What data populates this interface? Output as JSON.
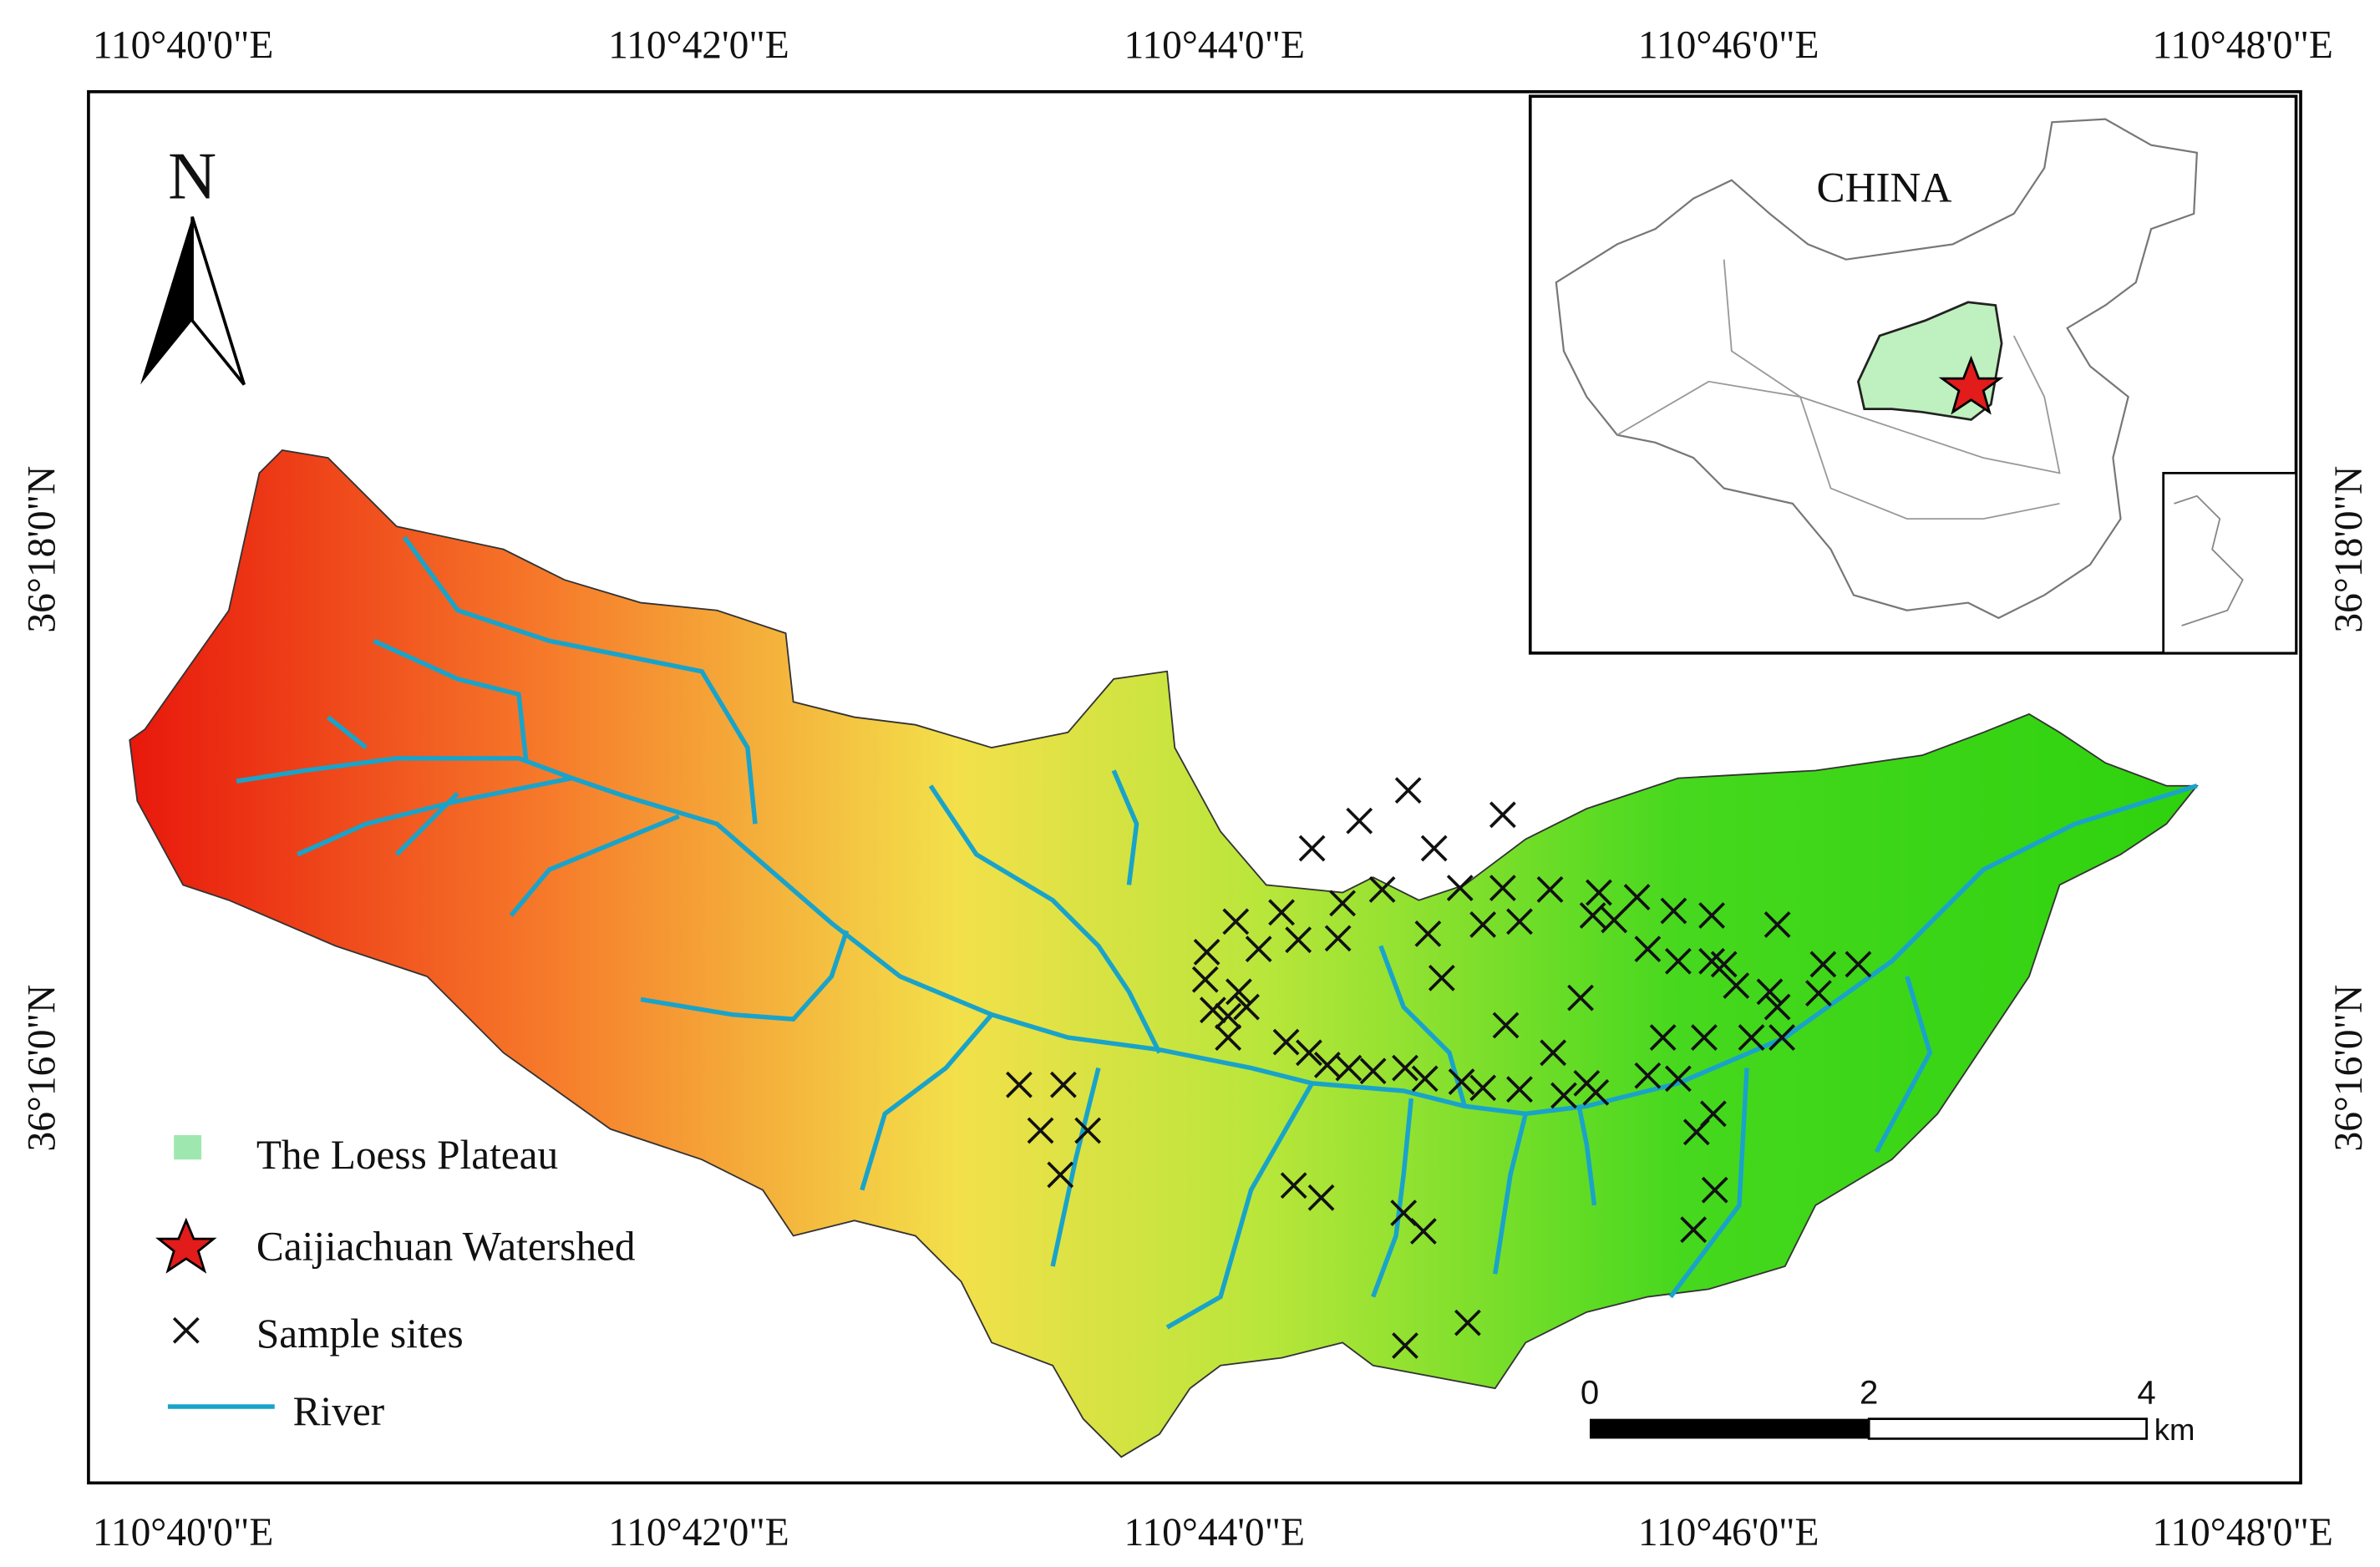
{
  "axes": {
    "top": [
      "110°40'0\"E",
      "110°42'0\"E",
      "110°44'0\"E",
      "110°46'0\"E",
      "110°48'0\"E"
    ],
    "bottom": [
      "110°40'0\"E",
      "110°42'0\"E",
      "110°44'0\"E",
      "110°46'0\"E",
      "110°48'0\"E"
    ],
    "left": [
      "36°18'0\"N",
      "36°16'0\"N"
    ],
    "right": [
      "36°18'0\"N",
      "36°16'0\"N"
    ]
  },
  "north": "N",
  "inset": {
    "label": "CHINA"
  },
  "legend": [
    "The Loess Plateau",
    "Caijiachuan Watershed",
    "Sample sites",
    "River"
  ],
  "scale_bar": {
    "ticks": [
      "0",
      "2",
      "4"
    ],
    "unit": "km"
  }
}
